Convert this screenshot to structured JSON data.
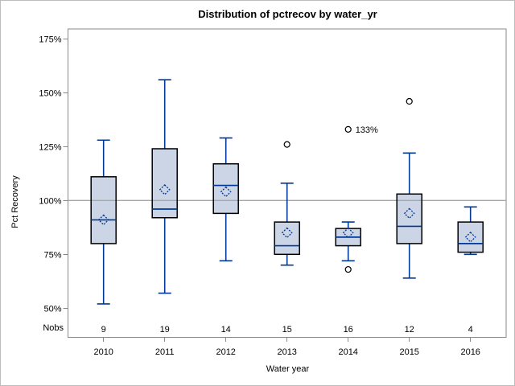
{
  "chart_data": {
    "type": "boxplot",
    "title": "Distribution of pctrecov by water_yr",
    "xlabel": "Water year",
    "ylabel": "Pct Recovery",
    "nobs_row_label": "Nobs",
    "y_ticks": [
      175,
      150,
      125,
      100,
      75,
      50
    ],
    "y_tick_suffix": "%",
    "ylim": [
      37,
      180
    ],
    "reference_line": 100,
    "grid": false,
    "legend": "none",
    "categories": [
      "2010",
      "2011",
      "2012",
      "2013",
      "2014",
      "2015",
      "2016"
    ],
    "nobs": [
      9,
      19,
      14,
      15,
      16,
      12,
      4
    ],
    "series": [
      {
        "category": "2010",
        "whisker_low": 52,
        "q1": 80,
        "median": 91,
        "q3": 111,
        "whisker_high": 128,
        "mean": 91,
        "outliers": []
      },
      {
        "category": "2011",
        "whisker_low": 57,
        "q1": 92,
        "median": 96,
        "q3": 124,
        "whisker_high": 156,
        "mean": 105,
        "outliers": []
      },
      {
        "category": "2012",
        "whisker_low": 72,
        "q1": 94,
        "median": 107,
        "q3": 117,
        "whisker_high": 129,
        "mean": 104,
        "outliers": []
      },
      {
        "category": "2013",
        "whisker_low": 70,
        "q1": 75,
        "median": 79,
        "q3": 90,
        "whisker_high": 108,
        "mean": 85,
        "outliers": [
          126
        ]
      },
      {
        "category": "2014",
        "whisker_low": 72,
        "q1": 79,
        "median": 83,
        "q3": 87,
        "whisker_high": 90,
        "mean": 85,
        "outliers": [
          133,
          68
        ],
        "outlier_labels": [
          "133%",
          ""
        ]
      },
      {
        "category": "2015",
        "whisker_low": 64,
        "q1": 80,
        "median": 88,
        "q3": 103,
        "whisker_high": 122,
        "mean": 94,
        "outliers": [
          146
        ]
      },
      {
        "category": "2016",
        "whisker_low": 75,
        "q1": 76,
        "median": 80,
        "q3": 90,
        "whisker_high": 97,
        "mean": 83,
        "outliers": []
      }
    ],
    "colors": {
      "box_fill": "#ccd5e5",
      "box_stroke": "#000000",
      "whisker": "#003894",
      "median": "#003894",
      "mean_marker": "#003894",
      "outlier_stroke": "#000000",
      "reference_line": "#a6a6a6",
      "frame": "#8a8a8a",
      "text": "#000000",
      "background": "#ffffff",
      "canvas_border": "#bdbdbd"
    }
  }
}
